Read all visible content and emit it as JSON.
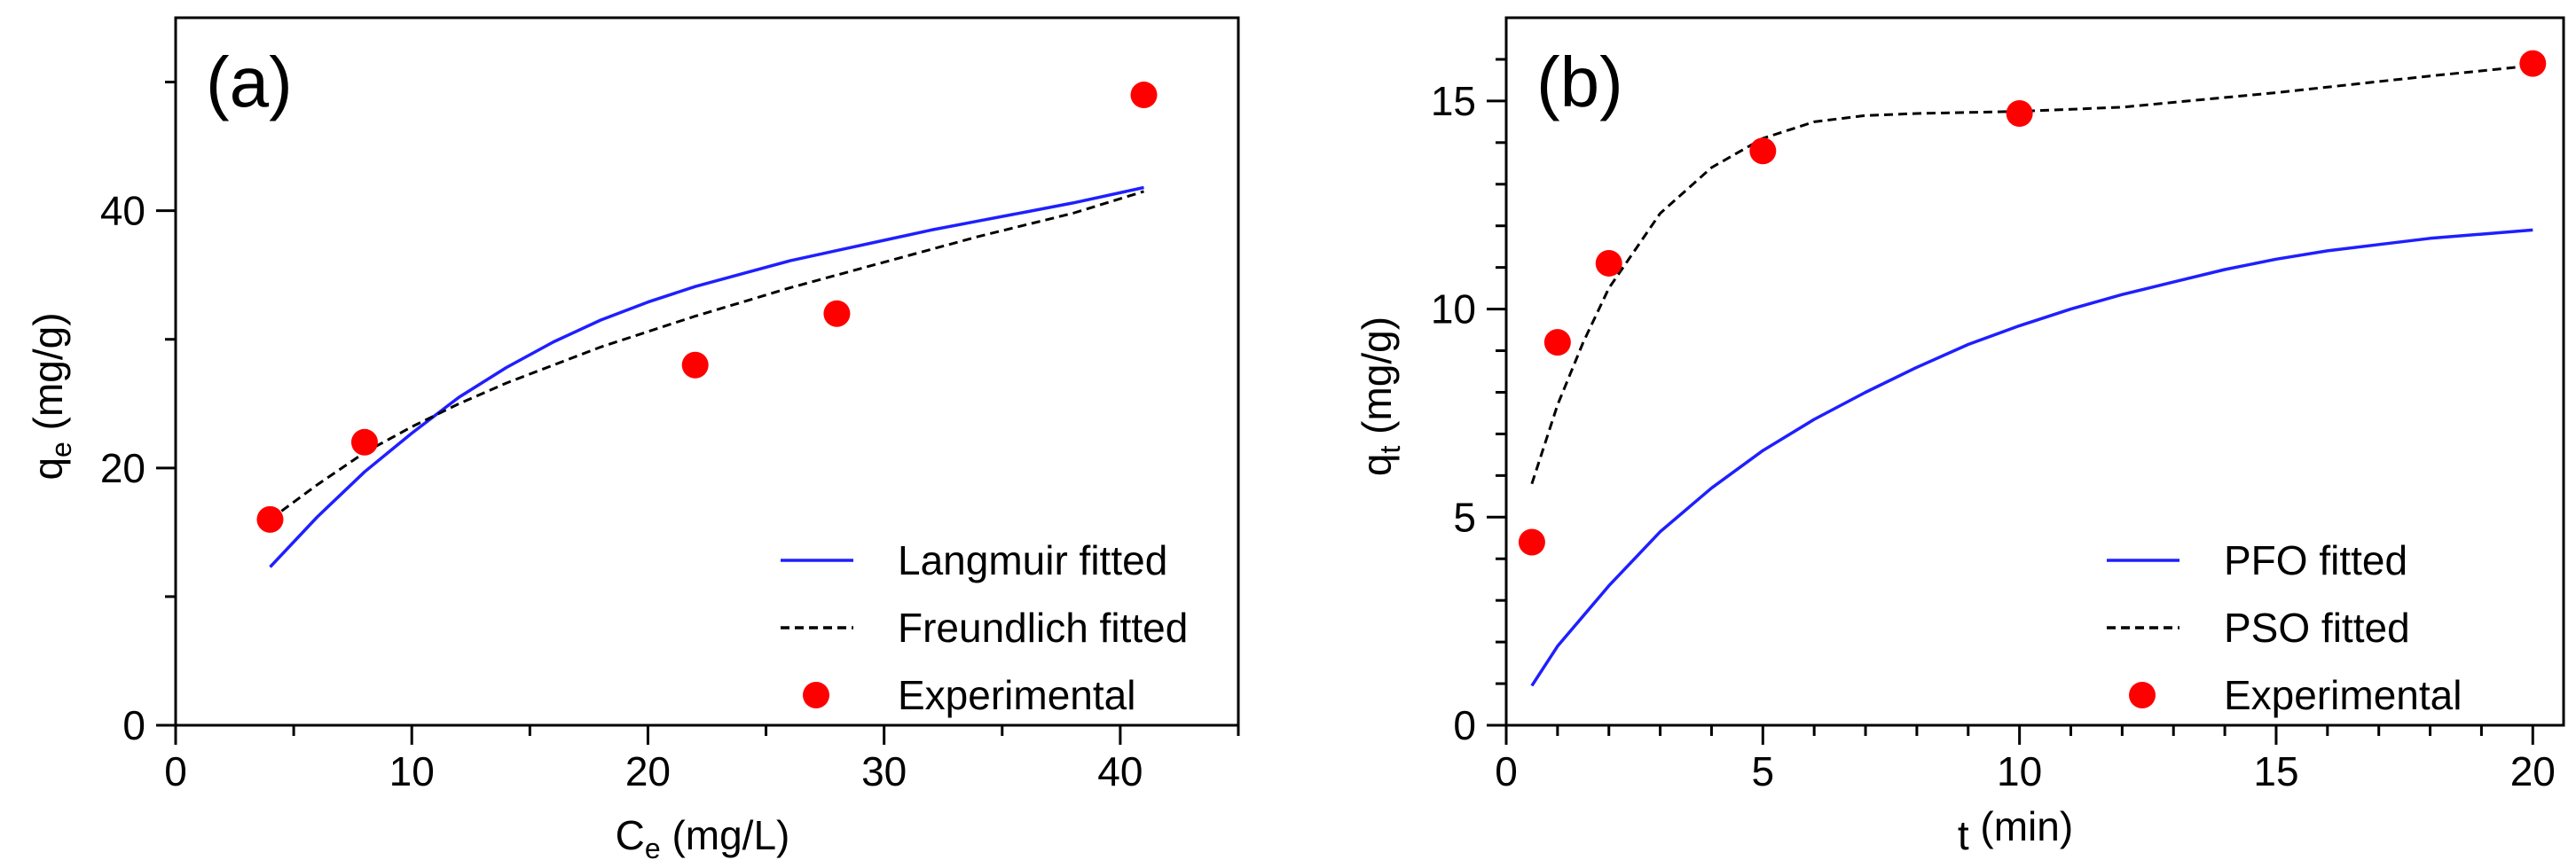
{
  "chart_data": [
    {
      "type": "line",
      "panel_label": "(a)",
      "title": "",
      "xlabel": {
        "main": "C",
        "sub": "e",
        "rest": " (mg/L)"
      },
      "ylabel": {
        "main": "q",
        "sub": "e",
        "rest": " (mg/g)"
      },
      "xlim": [
        0,
        45
      ],
      "ylim": [
        0,
        55
      ],
      "xticks": [
        0,
        10,
        20,
        30,
        40
      ],
      "xminor": [
        5,
        15,
        25,
        35,
        45
      ],
      "yticks": [
        0,
        20,
        40
      ],
      "yminor": [
        10,
        30,
        50
      ],
      "legend_position": "bottom-right",
      "series": [
        {
          "name": "Langmuir fitted",
          "style": "solid",
          "color": "#1f1fff",
          "x": [
            4,
            6,
            8,
            10,
            12,
            14,
            16,
            18,
            20,
            22,
            24,
            26,
            28,
            30,
            32,
            34,
            36,
            38,
            41
          ],
          "y": [
            12.3,
            16.2,
            19.7,
            22.7,
            25.5,
            27.8,
            29.8,
            31.5,
            32.9,
            34.1,
            35.1,
            36.1,
            36.9,
            37.7,
            38.5,
            39.2,
            39.9,
            40.6,
            41.8
          ]
        },
        {
          "name": "Freundlich fitted",
          "style": "dashed",
          "color": "#000000",
          "x": [
            4,
            6,
            8,
            10,
            12,
            14,
            16,
            18,
            20,
            22,
            24,
            26,
            28,
            30,
            32,
            34,
            36,
            38,
            41
          ],
          "y": [
            16.0,
            18.7,
            21.2,
            23.2,
            25.0,
            26.6,
            28.0,
            29.4,
            30.6,
            31.8,
            32.9,
            34.0,
            35.0,
            36.0,
            37.0,
            38.0,
            38.9,
            39.8,
            41.5
          ]
        },
        {
          "name": "Experimental",
          "style": "marker",
          "color": "#ff0000",
          "x": [
            4,
            8,
            22,
            28,
            41
          ],
          "y": [
            16,
            22,
            28,
            32,
            49
          ]
        }
      ]
    },
    {
      "type": "line",
      "panel_label": "(b)",
      "title": "",
      "xlabel": {
        "main": "t",
        "sub": "",
        "rest": " (min)"
      },
      "ylabel": {
        "main": "q",
        "sub": "t",
        "rest": " (mg/g)"
      },
      "xlim": [
        0,
        20.6
      ],
      "ylim": [
        0,
        17
      ],
      "xticks": [
        0,
        5,
        10,
        15,
        20
      ],
      "xminor": [
        1,
        2,
        3,
        4,
        6,
        7,
        8,
        9,
        11,
        12,
        13,
        14,
        16,
        17,
        18,
        19
      ],
      "yticks": [
        0,
        5,
        10,
        15
      ],
      "yminor": [
        1,
        2,
        3,
        4,
        6,
        7,
        8,
        9,
        11,
        12,
        13,
        14,
        16
      ],
      "legend_position": "bottom-right",
      "series": [
        {
          "name": "PFO fitted",
          "style": "solid",
          "color": "#1f1fff",
          "x": [
            0.5,
            1,
            2,
            3,
            4,
            5,
            6,
            7,
            8,
            9,
            10,
            11,
            12,
            13,
            14,
            15,
            16,
            17,
            18,
            19,
            20
          ],
          "y": [
            0.95,
            1.9,
            3.35,
            4.65,
            5.7,
            6.6,
            7.35,
            8.0,
            8.6,
            9.15,
            9.6,
            10.0,
            10.35,
            10.65,
            10.95,
            11.2,
            11.4,
            11.55,
            11.7,
            11.8,
            11.9
          ]
        },
        {
          "name": "PSO fitted",
          "style": "dashed",
          "color": "#000000",
          "x": [
            0.5,
            1,
            1.5,
            2,
            3,
            4,
            5,
            6,
            7,
            8,
            10,
            12,
            15,
            18,
            20
          ],
          "y": [
            5.8,
            7.7,
            9.2,
            10.5,
            12.3,
            13.4,
            14.1,
            14.5,
            14.65,
            14.7,
            14.75,
            14.85,
            15.2,
            15.6,
            15.85
          ]
        },
        {
          "name": "Experimental",
          "style": "marker",
          "color": "#ff0000",
          "x": [
            0.5,
            1,
            2,
            5,
            10,
            20
          ],
          "y": [
            4.4,
            9.2,
            11.1,
            13.8,
            14.7,
            15.9
          ]
        }
      ]
    }
  ]
}
